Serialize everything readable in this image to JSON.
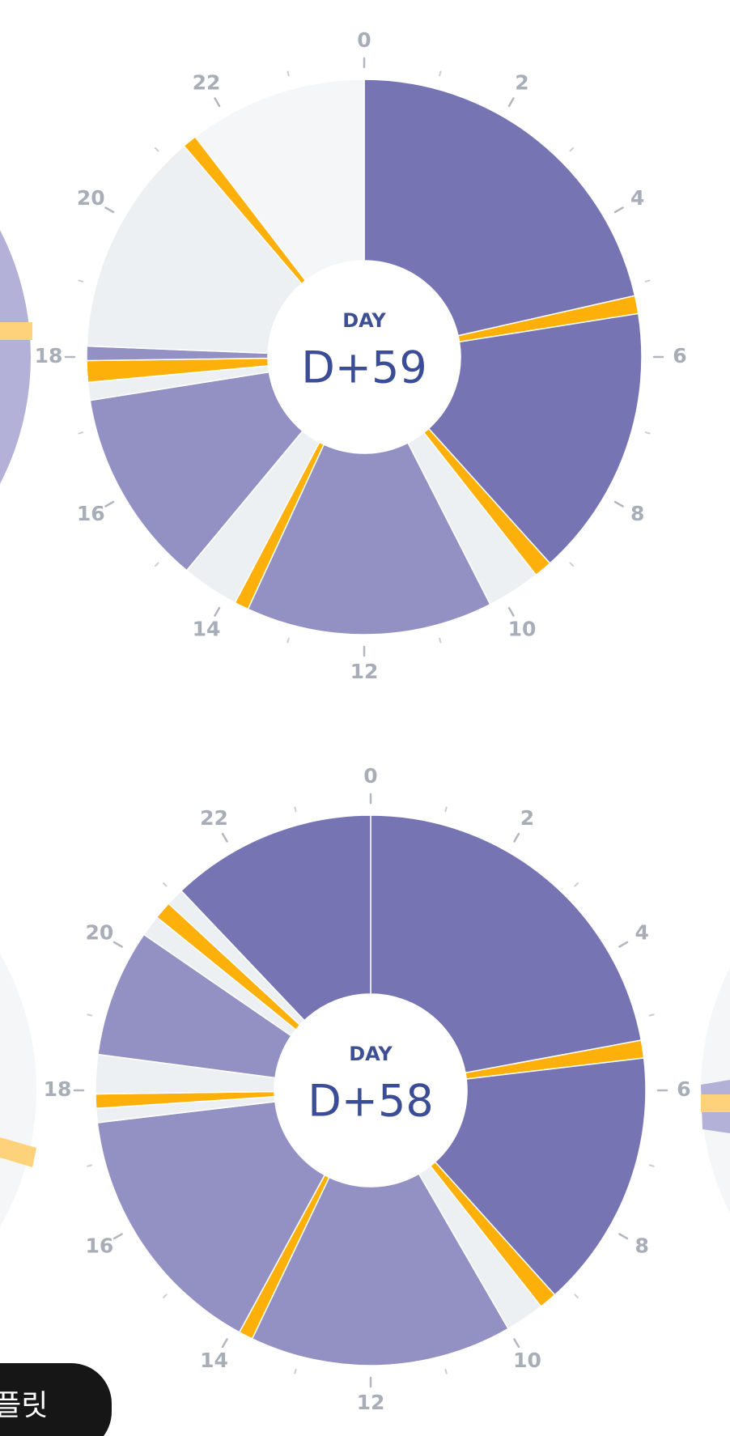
{
  "chart_data": [
    {
      "type": "pie",
      "subtitle": "DAY",
      "title": "D+59",
      "xlim": [
        0,
        24
      ],
      "xticks": [
        0,
        2,
        4,
        6,
        8,
        10,
        12,
        14,
        16,
        18,
        20,
        22
      ],
      "minor_ticks": [
        1,
        3,
        5,
        7,
        9,
        11,
        13,
        15,
        17,
        19,
        21,
        23
      ],
      "values": [
        5.15,
        0.25,
        3.8,
        0.25,
        0.75,
        3.45,
        0.2,
        0.8,
        2.75,
        0.25,
        0.3,
        0.2,
        3.15,
        0.2,
        2.5
      ],
      "colors": [
        "#7674b2",
        "#fdb00a",
        "#7674b2",
        "#fdb00a",
        "#edf0f3",
        "#9391c4",
        "#fdb00a",
        "#edf0f3",
        "#9391c4",
        "#edf0f3",
        "#fdb00a",
        "#9391c4",
        "#edf0f3",
        "#fdb00a",
        "#f4f6f8"
      ]
    },
    {
      "type": "pie",
      "subtitle": "DAY",
      "title": "D+58",
      "xlim": [
        0,
        24
      ],
      "xticks": [
        0,
        2,
        4,
        6,
        8,
        10,
        12,
        14,
        16,
        18,
        20,
        22
      ],
      "minor_ticks": [
        1,
        3,
        5,
        7,
        9,
        11,
        13,
        15,
        17,
        19,
        21,
        23
      ],
      "values": [
        5.3,
        0.25,
        3.65,
        0.25,
        0.55,
        3.7,
        0.2,
        3.65,
        0.2,
        0.2,
        0.55,
        1.8,
        0.3,
        0.25,
        0.25,
        2.9
      ],
      "colors": [
        "#7674b2",
        "#fdb00a",
        "#7674b2",
        "#fdb00a",
        "#edf0f3",
        "#9391c4",
        "#fdb00a",
        "#9391c4",
        "#edf0f3",
        "#fdb00a",
        "#edf0f3",
        "#9391c4",
        "#edf0f3",
        "#fdb00a",
        "#edf0f3",
        "#7674b2"
      ]
    }
  ],
  "button": {
    "label": "템플릿"
  }
}
